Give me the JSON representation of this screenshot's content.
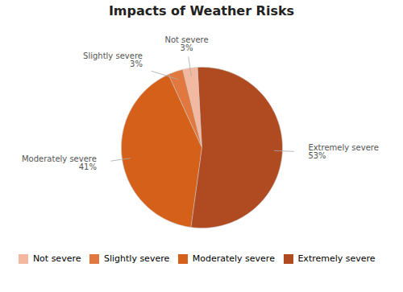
{
  "chart_data": {
    "type": "pie",
    "title": "Impacts of Weather Risks",
    "categories": [
      "Not severe",
      "Slightly severe",
      "Moderately severe",
      "Extremely severe"
    ],
    "values": [
      3,
      3,
      41,
      53
    ],
    "value_labels": [
      "3%",
      "3%",
      "41%",
      "53%"
    ],
    "colors": [
      "#f2b8a0",
      "#e07840",
      "#d4601a",
      "#b04a20"
    ],
    "data_labels": true,
    "legend": "bottom"
  }
}
